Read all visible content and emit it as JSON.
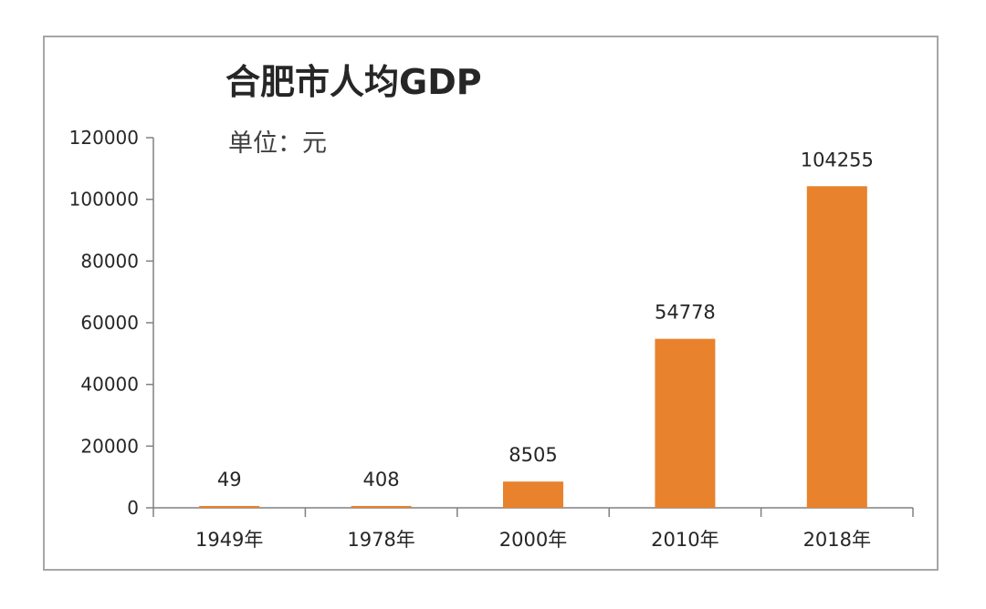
{
  "chart_data": {
    "type": "bar",
    "title": "合肥市人均GDP",
    "subtitle": "单位：元",
    "categories": [
      "1949年",
      "1978年",
      "2000年",
      "2010年",
      "2018年"
    ],
    "values": [
      49,
      408,
      8505,
      54778,
      104255
    ],
    "data_labels": [
      "49",
      "408",
      "8505",
      "54778",
      "104255"
    ],
    "y_ticks": [
      0,
      20000,
      40000,
      60000,
      80000,
      100000,
      120000
    ],
    "y_tick_labels": [
      "0",
      "20000",
      "40000",
      "60000",
      "80000",
      "100000",
      "120000"
    ],
    "ylim": [
      0,
      120000
    ],
    "xlabel": "",
    "ylabel": "",
    "grid": false,
    "legend": false,
    "colors": {
      "bar": "#E8822C",
      "frame": "#A6A6A6",
      "axis": "#808080",
      "text": "#262626"
    }
  }
}
